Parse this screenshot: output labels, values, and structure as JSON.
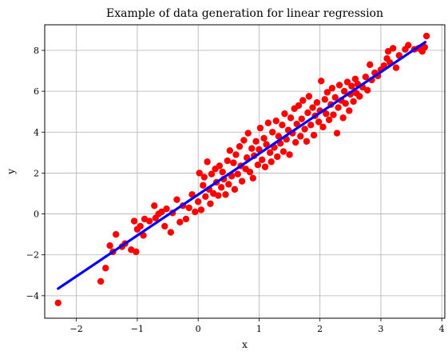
{
  "chart_data": {
    "type": "scatter",
    "title": "Example of data generation for linear regression",
    "xlabel": "x",
    "ylabel": "y",
    "xlim": [
      -2.52,
      4.05
    ],
    "ylim": [
      -5.1,
      9.25
    ],
    "grid": true,
    "x_ticks": [
      -2,
      -1,
      0,
      1,
      2,
      3,
      4
    ],
    "y_ticks": [
      -4,
      -2,
      0,
      2,
      4,
      6,
      8
    ],
    "x_tick_labels": [
      "−2",
      "−1",
      "0",
      "1",
      "2",
      "3",
      "4"
    ],
    "y_tick_labels": [
      "−4",
      "−2",
      "0",
      "2",
      "4",
      "6",
      "8"
    ],
    "colors": {
      "points": "#ff0000",
      "fit_line": "#0000ff",
      "grid": "#b0b0b0"
    },
    "series": [
      {
        "type": "scatter",
        "points": [
          [
            -2.3,
            -4.35
          ],
          [
            -1.6,
            -3.3
          ],
          [
            -1.52,
            -2.65
          ],
          [
            -1.45,
            -1.55
          ],
          [
            -1.4,
            -1.85
          ],
          [
            -1.35,
            -1.0
          ],
          [
            -1.25,
            -1.6
          ],
          [
            -1.2,
            -1.45
          ],
          [
            -1.1,
            -1.75
          ],
          [
            -1.02,
            -1.85
          ],
          [
            -1.05,
            -0.35
          ],
          [
            -1.0,
            -0.75
          ],
          [
            -0.95,
            -0.6
          ],
          [
            -0.9,
            -1.05
          ],
          [
            -0.88,
            -0.25
          ],
          [
            -0.8,
            -0.35
          ],
          [
            -0.72,
            0.4
          ],
          [
            -0.7,
            -0.2
          ],
          [
            -0.65,
            0.0
          ],
          [
            -0.6,
            0.1
          ],
          [
            -0.55,
            -0.6
          ],
          [
            -0.52,
            0.25
          ],
          [
            -0.45,
            -0.9
          ],
          [
            -0.42,
            0.05
          ],
          [
            -0.35,
            0.7
          ],
          [
            -0.3,
            -0.4
          ],
          [
            -0.25,
            0.4
          ],
          [
            -0.2,
            -0.25
          ],
          [
            -0.15,
            0.3
          ],
          [
            -0.1,
            0.95
          ],
          [
            -0.05,
            0.1
          ],
          [
            0.0,
            0.6
          ],
          [
            0.02,
            2.0
          ],
          [
            0.05,
            0.2
          ],
          [
            0.08,
            1.4
          ],
          [
            0.1,
            1.8
          ],
          [
            0.12,
            0.85
          ],
          [
            0.15,
            2.55
          ],
          [
            0.18,
            1.2
          ],
          [
            0.2,
            0.5
          ],
          [
            0.22,
            1.95
          ],
          [
            0.25,
            1.0
          ],
          [
            0.28,
            2.2
          ],
          [
            0.3,
            1.55
          ],
          [
            0.33,
            0.9
          ],
          [
            0.35,
            2.35
          ],
          [
            0.38,
            1.3
          ],
          [
            0.4,
            2.05
          ],
          [
            0.42,
            1.7
          ],
          [
            0.45,
            0.95
          ],
          [
            0.48,
            2.6
          ],
          [
            0.5,
            1.45
          ],
          [
            0.52,
            3.1
          ],
          [
            0.55,
            1.85
          ],
          [
            0.58,
            2.5
          ],
          [
            0.6,
            1.2
          ],
          [
            0.62,
            2.9
          ],
          [
            0.65,
            1.95
          ],
          [
            0.68,
            3.3
          ],
          [
            0.7,
            2.35
          ],
          [
            0.72,
            1.6
          ],
          [
            0.75,
            3.6
          ],
          [
            0.78,
            2.2
          ],
          [
            0.8,
            2.75
          ],
          [
            0.82,
            3.95
          ],
          [
            0.85,
            2.05
          ],
          [
            0.88,
            3.2
          ],
          [
            0.9,
            1.75
          ],
          [
            0.92,
            2.85
          ],
          [
            0.95,
            3.55
          ],
          [
            0.98,
            2.4
          ],
          [
            1.0,
            3.15
          ],
          [
            1.02,
            4.2
          ],
          [
            1.05,
            2.65
          ],
          [
            1.08,
            3.7
          ],
          [
            1.1,
            2.3
          ],
          [
            1.12,
            3.4
          ],
          [
            1.15,
            4.45
          ],
          [
            1.18,
            3.0
          ],
          [
            1.2,
            2.55
          ],
          [
            1.22,
            4.0
          ],
          [
            1.25,
            3.25
          ],
          [
            1.28,
            4.55
          ],
          [
            1.3,
            2.8
          ],
          [
            1.32,
            3.8
          ],
          [
            1.35,
            3.45
          ],
          [
            1.38,
            4.35
          ],
          [
            1.4,
            3.05
          ],
          [
            1.42,
            4.9
          ],
          [
            1.45,
            3.65
          ],
          [
            1.48,
            4.1
          ],
          [
            1.5,
            2.9
          ],
          [
            1.52,
            4.7
          ],
          [
            1.55,
            3.95
          ],
          [
            1.58,
            5.15
          ],
          [
            1.6,
            3.5
          ],
          [
            1.62,
            4.4
          ],
          [
            1.65,
            5.3
          ],
          [
            1.68,
            3.8
          ],
          [
            1.7,
            4.65
          ],
          [
            1.72,
            5.55
          ],
          [
            1.75,
            4.15
          ],
          [
            1.78,
            3.55
          ],
          [
            1.8,
            4.95
          ],
          [
            1.82,
            5.75
          ],
          [
            1.85,
            4.35
          ],
          [
            1.88,
            5.2
          ],
          [
            1.9,
            3.85
          ],
          [
            1.92,
            4.8
          ],
          [
            1.95,
            5.45
          ],
          [
            1.98,
            4.5
          ],
          [
            2.0,
            5.05
          ],
          [
            2.02,
            6.5
          ],
          [
            2.05,
            4.25
          ],
          [
            2.08,
            5.6
          ],
          [
            2.1,
            4.9
          ],
          [
            2.12,
            5.95
          ],
          [
            2.15,
            4.6
          ],
          [
            2.18,
            5.35
          ],
          [
            2.2,
            6.15
          ],
          [
            2.22,
            4.85
          ],
          [
            2.25,
            5.7
          ],
          [
            2.28,
            3.95
          ],
          [
            2.3,
            5.2
          ],
          [
            2.32,
            6.3
          ],
          [
            2.35,
            5.55
          ],
          [
            2.38,
            4.7
          ],
          [
            2.4,
            6.0
          ],
          [
            2.42,
            5.4
          ],
          [
            2.45,
            6.45
          ],
          [
            2.48,
            5.05
          ],
          [
            2.5,
            5.85
          ],
          [
            2.52,
            6.25
          ],
          [
            2.55,
            5.5
          ],
          [
            2.58,
            6.6
          ],
          [
            2.6,
            5.9
          ],
          [
            2.62,
            6.35
          ],
          [
            2.65,
            5.75
          ],
          [
            2.7,
            6.2
          ],
          [
            2.75,
            6.7
          ],
          [
            2.78,
            6.05
          ],
          [
            2.82,
            7.3
          ],
          [
            2.85,
            6.55
          ],
          [
            2.9,
            6.9
          ],
          [
            2.95,
            6.75
          ],
          [
            3.0,
            7.05
          ],
          [
            3.05,
            7.25
          ],
          [
            3.1,
            7.6
          ],
          [
            3.12,
            7.95
          ],
          [
            3.15,
            7.4
          ],
          [
            3.2,
            8.1
          ],
          [
            3.25,
            7.15
          ],
          [
            3.3,
            7.75
          ],
          [
            3.4,
            8.05
          ],
          [
            3.45,
            8.25
          ],
          [
            3.55,
            8.05
          ],
          [
            3.62,
            8.1
          ],
          [
            3.68,
            7.95
          ],
          [
            3.72,
            8.15
          ],
          [
            3.75,
            8.7
          ]
        ]
      },
      {
        "type": "line",
        "x": [
          -2.3,
          3.73
        ],
        "y": [
          -3.65,
          8.4
        ]
      }
    ]
  }
}
